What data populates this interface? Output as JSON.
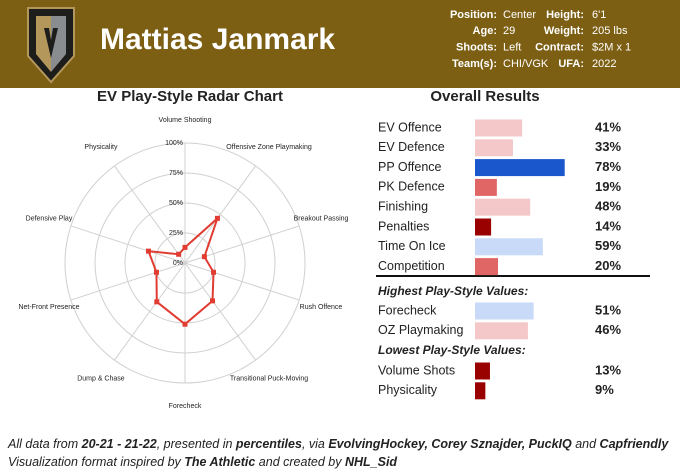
{
  "header": {
    "name": "Mattias Janmark",
    "info_left": [
      {
        "label": "Position:",
        "value": "Center"
      },
      {
        "label": "Age:",
        "value": "29"
      },
      {
        "label": "Shoots:",
        "value": "Left"
      },
      {
        "label": "Team(s):",
        "value": "CHI/VGK"
      }
    ],
    "info_right": [
      {
        "label": "Height:",
        "value": "6'1"
      },
      {
        "label": "Weight:",
        "value": "205 lbs"
      },
      {
        "label": "Contract:",
        "value": "$2M x 1"
      },
      {
        "label": "UFA:",
        "value": "2022"
      }
    ]
  },
  "chart_data": [
    {
      "type": "radar",
      "title": "EV Play-Style Radar Chart",
      "categories": [
        "Volume Shooting",
        "Offensive Zone Playmaking",
        "Breakout Passing",
        "Rush Offence",
        "Transitional Puck-Moving",
        "Forecheck",
        "Dump & Chase",
        "Net-Front Presence",
        "Defensive Play",
        "Physicality"
      ],
      "values": [
        13,
        46,
        17,
        25,
        39,
        51,
        40,
        25,
        32,
        9
      ],
      "color": "#e03c31",
      "rlim": [
        0,
        100
      ],
      "rticks": [
        {
          "value": 0,
          "label": "0%"
        },
        {
          "value": 25,
          "label": "25%"
        },
        {
          "value": 50,
          "label": "50%"
        },
        {
          "value": 75,
          "label": "75%"
        },
        {
          "value": 100,
          "label": "100%"
        }
      ]
    },
    {
      "type": "bar",
      "title": "Overall Results",
      "categories": [
        "EV Offence",
        "EV Defence",
        "PP Offence",
        "PK Defence",
        "Finishing",
        "Penalties",
        "Time On Ice",
        "Competition"
      ],
      "values": [
        41,
        33,
        78,
        19,
        48,
        14,
        59,
        20
      ],
      "value_labels": [
        "41%",
        "33%",
        "78%",
        "19%",
        "48%",
        "14%",
        "59%",
        "20%"
      ],
      "colors": [
        "#f4c7c9",
        "#f4c7c9",
        "#1a56cc",
        "#e06666",
        "#f4c7c9",
        "#990000",
        "#c9daf8",
        "#e06666"
      ]
    },
    {
      "type": "bar",
      "title": "Highest Play-Style Values:",
      "categories": [
        "Forecheck",
        "OZ Playmaking"
      ],
      "values": [
        51,
        46
      ],
      "value_labels": [
        "51%",
        "46%"
      ],
      "colors": [
        "#c9daf8",
        "#f4c7c9"
      ]
    },
    {
      "type": "bar",
      "title": "Lowest Play-Style Values:",
      "categories": [
        "Volume Shots",
        "Physicality"
      ],
      "values": [
        13,
        9
      ],
      "value_labels": [
        "13%",
        "9%"
      ],
      "colors": [
        "#990000",
        "#990000"
      ]
    }
  ],
  "footer": {
    "lines": [
      [
        {
          "text": "All data from ",
          "bold": false
        },
        {
          "text": "20-21 - 21-22",
          "bold": true
        },
        {
          "text": ", presented in ",
          "bold": false
        },
        {
          "text": "percentiles",
          "bold": true
        },
        {
          "text": ", via ",
          "bold": false
        },
        {
          "text": "EvolvingHockey, Corey Sznajder, PuckIQ",
          "bold": true
        },
        {
          "text": " and ",
          "bold": false
        },
        {
          "text": "Capfriendly",
          "bold": true
        }
      ],
      [
        {
          "text": "Visualization format inspired by ",
          "bold": false
        },
        {
          "text": "The Athletic",
          "bold": true
        },
        {
          "text": " and created by ",
          "bold": false
        },
        {
          "text": "NHL_Sid",
          "bold": true
        }
      ]
    ]
  }
}
